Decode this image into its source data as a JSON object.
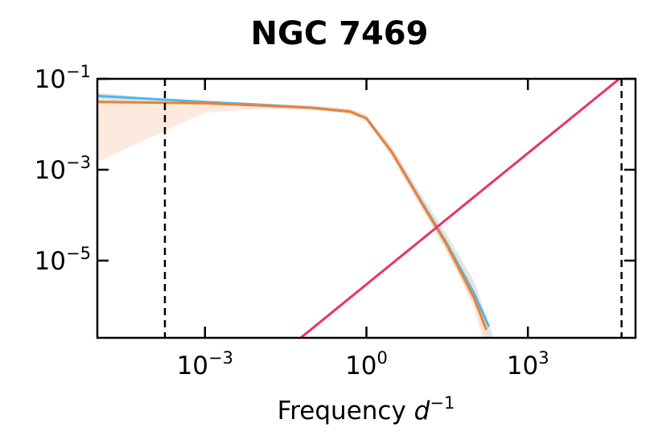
{
  "chart_data": {
    "type": "line",
    "title": "NGC 7469",
    "xlabel": "Frequency d^-1",
    "ylabel": "",
    "x_scale": "log",
    "y_scale": "log",
    "xlim": [
      1e-05,
      100000.0
    ],
    "ylim": [
      2e-07,
      0.1
    ],
    "x_ticks": [
      {
        "value": 0.001,
        "mantissa": "10",
        "exponent": "−3"
      },
      {
        "value": 1,
        "mantissa": "10",
        "exponent": "0"
      },
      {
        "value": 1000,
        "mantissa": "10",
        "exponent": "3"
      }
    ],
    "y_ticks": [
      {
        "value": 0.1,
        "mantissa": "10",
        "exponent": "−1"
      },
      {
        "value": 0.001,
        "mantissa": "10",
        "exponent": "−3"
      },
      {
        "value": 1e-05,
        "mantissa": "10",
        "exponent": "−5"
      }
    ],
    "vertical_lines": [
      {
        "x": 0.00018,
        "style": "dashed"
      },
      {
        "x": 55000,
        "style": "dashed"
      }
    ],
    "series": [
      {
        "color": "#4db8e8",
        "band_color": "#c9cfd2",
        "points": [
          [
            1e-05,
            0.042
          ],
          [
            0.001,
            0.031
          ],
          [
            0.01,
            0.027
          ],
          [
            0.1,
            0.023
          ],
          [
            0.5,
            0.019
          ],
          [
            1,
            0.0135
          ],
          [
            3,
            0.0024
          ],
          [
            10,
            0.00022
          ],
          [
            30,
            2.6e-05
          ],
          [
            100,
            1.9e-06
          ],
          [
            190,
            3.5e-07
          ]
        ],
        "band_upper": [
          [
            1e-05,
            0.03
          ],
          [
            0.001,
            0.033
          ],
          [
            0.01,
            0.029
          ],
          [
            0.1,
            0.026
          ],
          [
            0.5,
            0.022
          ],
          [
            1,
            0.016
          ],
          [
            3,
            0.0031
          ],
          [
            10,
            0.00031
          ],
          [
            30,
            4e-05
          ],
          [
            100,
            3.5e-06
          ],
          [
            230,
            2e-07
          ]
        ],
        "band_lower": [
          [
            1e-05,
            0.05
          ],
          [
            0.001,
            0.028
          ],
          [
            0.01,
            0.025
          ],
          [
            0.1,
            0.021
          ],
          [
            0.5,
            0.017
          ],
          [
            1,
            0.0115
          ],
          [
            3,
            0.0019
          ],
          [
            10,
            0.00016
          ],
          [
            30,
            1.7e-05
          ],
          [
            100,
            1.1e-06
          ],
          [
            160,
            2e-07
          ]
        ]
      },
      {
        "color": "#f07f33",
        "band_color": "#fbd9c2",
        "points": [
          [
            1e-05,
            0.031
          ],
          [
            0.001,
            0.029
          ],
          [
            0.01,
            0.026
          ],
          [
            0.1,
            0.023
          ],
          [
            0.5,
            0.019
          ],
          [
            1,
            0.0135
          ],
          [
            3,
            0.0024
          ],
          [
            10,
            0.00021
          ],
          [
            30,
            2.4e-05
          ],
          [
            100,
            1.5e-06
          ],
          [
            170,
            3e-07
          ]
        ],
        "band_upper": [
          [
            1e-05,
            0.032
          ],
          [
            0.001,
            0.03
          ],
          [
            0.01,
            0.027
          ],
          [
            0.1,
            0.024
          ],
          [
            0.5,
            0.02
          ],
          [
            1,
            0.0145
          ],
          [
            3,
            0.0027
          ],
          [
            10,
            0.00025
          ],
          [
            30,
            3e-05
          ],
          [
            100,
            2.5e-06
          ],
          [
            200,
            2e-07
          ]
        ],
        "band_lower": [
          [
            1e-05,
            0.0015
          ],
          [
            0.001,
            0.018
          ],
          [
            0.01,
            0.022
          ],
          [
            0.1,
            0.021
          ],
          [
            0.5,
            0.017
          ],
          [
            1,
            0.012
          ],
          [
            3,
            0.002
          ],
          [
            10,
            0.00017
          ],
          [
            30,
            1.9e-05
          ],
          [
            100,
            9e-07
          ],
          [
            140,
            2e-07
          ]
        ]
      },
      {
        "color": "#e8336b",
        "points": [
          [
            0.06,
            2e-07
          ],
          [
            50000,
            0.1
          ]
        ]
      }
    ],
    "grid": false,
    "legend": "none"
  },
  "colors": {
    "frame": "#000000",
    "background": "#ffffff",
    "band_gray": "#c9cfd2"
  }
}
